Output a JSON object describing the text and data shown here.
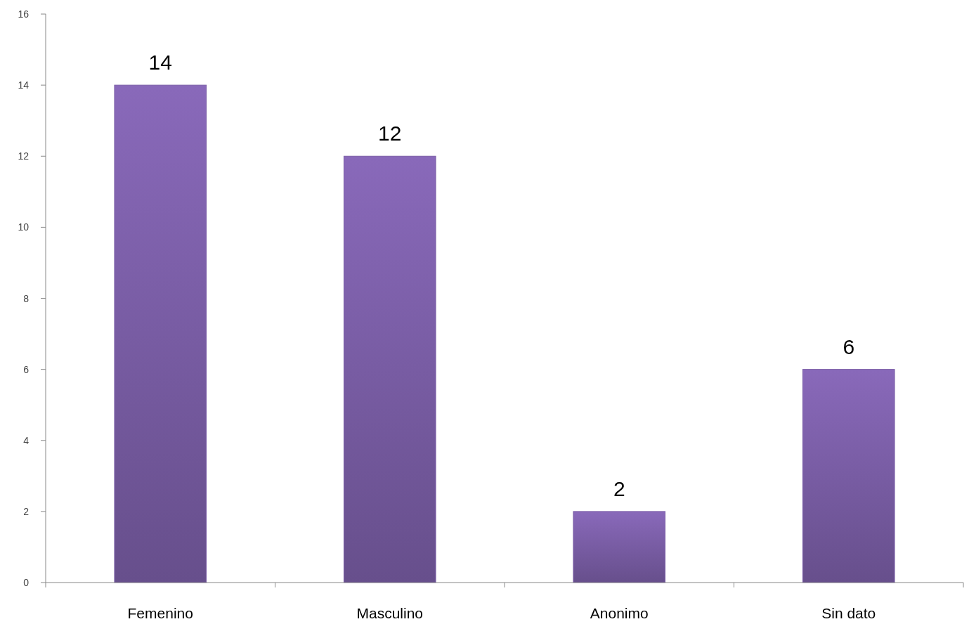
{
  "chart_data": {
    "type": "bar",
    "categories": [
      "Femenino",
      "Masculino",
      "Anonimo",
      "Sin dato"
    ],
    "values": [
      14,
      12,
      2,
      6
    ],
    "color": "#7b5ea7",
    "ylim": [
      0,
      16
    ],
    "yticks": [
      0,
      2,
      4,
      6,
      8,
      10,
      12,
      14,
      16
    ],
    "data_labels": true
  }
}
